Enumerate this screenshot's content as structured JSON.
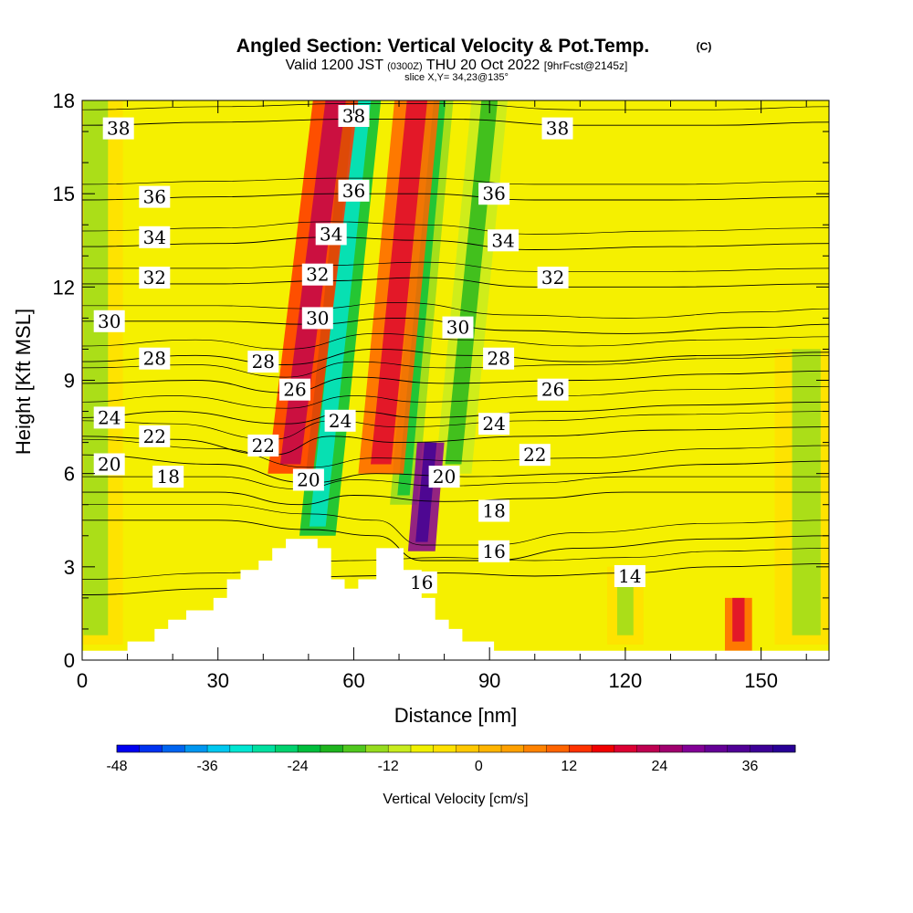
{
  "header": {
    "title": "Angled Section: Vertical Velocity & Pot.Temp.",
    "title_mark": "(C)",
    "valid_prefix": "Valid 1200 JST",
    "valid_utc": "(0300Z)",
    "valid_date": "THU 20 Oct 2022",
    "forecast": "[9hrFcst@2145z]",
    "slice": "slice X,Y= 34,23@135°"
  },
  "chart_data": {
    "type": "heatmap",
    "xlabel": "Distance [nm]",
    "ylabel": "Height [Kft MSL]",
    "xlim": [
      0,
      165
    ],
    "ylim": [
      0,
      18
    ],
    "x_ticks": [
      0,
      30,
      60,
      90,
      120,
      150
    ],
    "y_ticks": [
      0,
      3,
      6,
      9,
      12,
      15,
      18
    ],
    "x_minor_step": 10,
    "y_minor_step": 1,
    "terrain_profile": [
      [
        0,
        0.3
      ],
      [
        10,
        0.3
      ],
      [
        10,
        0.6
      ],
      [
        16,
        0.6
      ],
      [
        16,
        1.0
      ],
      [
        19,
        1.0
      ],
      [
        19,
        1.3
      ],
      [
        23,
        1.3
      ],
      [
        23,
        1.6
      ],
      [
        29,
        1.6
      ],
      [
        29,
        2.0
      ],
      [
        32,
        2.0
      ],
      [
        32,
        2.6
      ],
      [
        35,
        2.6
      ],
      [
        35,
        2.9
      ],
      [
        39,
        2.9
      ],
      [
        39,
        3.2
      ],
      [
        42,
        3.2
      ],
      [
        42,
        3.6
      ],
      [
        45,
        3.6
      ],
      [
        45,
        3.9
      ],
      [
        52,
        3.9
      ],
      [
        52,
        3.6
      ],
      [
        55,
        3.6
      ],
      [
        55,
        2.6
      ],
      [
        58,
        2.6
      ],
      [
        58,
        2.3
      ],
      [
        61,
        2.3
      ],
      [
        61,
        2.6
      ],
      [
        65,
        2.6
      ],
      [
        65,
        3.6
      ],
      [
        71,
        3.6
      ],
      [
        71,
        2.9
      ],
      [
        75,
        2.9
      ],
      [
        75,
        2.0
      ],
      [
        78,
        2.0
      ],
      [
        78,
        1.3
      ],
      [
        81,
        1.3
      ],
      [
        81,
        1.0
      ],
      [
        84,
        1.0
      ],
      [
        84,
        0.6
      ],
      [
        91,
        0.6
      ],
      [
        91,
        0.3
      ],
      [
        165,
        0.3
      ]
    ],
    "vertical_velocity_bands": [
      {
        "x_center": 52,
        "x_spread": 4,
        "y_from": 4,
        "y_to": 18,
        "tilt": 10,
        "value": -24
      },
      {
        "x_center": 71,
        "x_spread": 3,
        "y_from": 5,
        "y_to": 18,
        "tilt": 8,
        "value": -15
      },
      {
        "x_center": 82,
        "x_spread": 4,
        "y_from": 6,
        "y_to": 18,
        "tilt": 8,
        "value": -12
      },
      {
        "x_center": 46,
        "x_spread": 5,
        "y_from": 6,
        "y_to": 18,
        "tilt": 10,
        "value": 12
      },
      {
        "x_center": 66,
        "x_spread": 5,
        "y_from": 6,
        "y_to": 18,
        "tilt": 8,
        "value": 10
      },
      {
        "x_center": 75,
        "x_spread": 3,
        "y_from": 3.5,
        "y_to": 7,
        "tilt": 2,
        "value": 27
      },
      {
        "x_center": 3,
        "x_spread": 6,
        "y_from": 0.5,
        "y_to": 18,
        "tilt": 0,
        "value": -6
      },
      {
        "x_center": 160,
        "x_spread": 7,
        "y_from": 0.5,
        "y_to": 10,
        "tilt": 0,
        "value": -6
      },
      {
        "x_center": 120,
        "x_spread": 4,
        "y_from": 0.5,
        "y_to": 3,
        "tilt": 0,
        "value": -6
      },
      {
        "x_center": 145,
        "x_spread": 3,
        "y_from": 0.3,
        "y_to": 2,
        "tilt": 0,
        "value": 9
      }
    ],
    "isentropes": [
      {
        "theta": 14,
        "x": [
          0,
          30,
          60,
          80,
          100,
          120,
          140,
          165
        ],
        "y": [
          2.1,
          2.3,
          2.7,
          2.8,
          2.7,
          2.8,
          3.0,
          3.1
        ]
      },
      {
        "theta": 16,
        "x": [
          0,
          30,
          50,
          65,
          75,
          90,
          110,
          140,
          165
        ],
        "y": [
          4.5,
          4.5,
          4.2,
          4.0,
          3.2,
          3.2,
          3.6,
          3.9,
          4.0
        ]
      },
      {
        "theta": 18,
        "x": [
          0,
          30,
          48,
          60,
          80,
          100,
          120,
          165
        ],
        "y": [
          5.4,
          5.4,
          5.0,
          5.3,
          5.1,
          5.2,
          5.4,
          5.4
        ]
      },
      {
        "theta": 20,
        "x": [
          0,
          30,
          50,
          65,
          85,
          110,
          140,
          165
        ],
        "y": [
          6.6,
          6.3,
          5.7,
          6.0,
          5.9,
          6.0,
          6.3,
          6.4
        ]
      },
      {
        "theta": 22,
        "x": [
          0,
          20,
          42,
          55,
          70,
          100,
          130,
          165
        ],
        "y": [
          7.2,
          7.1,
          6.6,
          7.2,
          7.0,
          7.2,
          7.4,
          7.5
        ]
      },
      {
        "theta": 24,
        "x": [
          0,
          20,
          45,
          60,
          75,
          105,
          135,
          165
        ],
        "y": [
          7.8,
          8.0,
          7.6,
          8.0,
          7.8,
          8.0,
          8.2,
          8.3
        ]
      },
      {
        "theta": 26,
        "x": [
          0,
          25,
          45,
          60,
          80,
          110,
          140,
          165
        ],
        "y": [
          8.9,
          9.0,
          8.6,
          9.1,
          8.9,
          9.0,
          9.2,
          9.3
        ]
      },
      {
        "theta": 28,
        "x": [
          0,
          25,
          45,
          65,
          85,
          110,
          140,
          165
        ],
        "y": [
          9.6,
          9.8,
          9.5,
          10.0,
          9.8,
          9.6,
          9.8,
          9.9
        ]
      },
      {
        "theta": 30,
        "x": [
          0,
          30,
          50,
          70,
          95,
          120,
          150,
          165
        ],
        "y": [
          10.9,
          10.9,
          10.8,
          11.0,
          10.6,
          10.5,
          10.7,
          10.8
        ]
      },
      {
        "theta": 32,
        "x": [
          0,
          30,
          55,
          75,
          100,
          130,
          165
        ],
        "y": [
          12.1,
          12.1,
          12.2,
          12.3,
          12.0,
          12.0,
          12.1
        ]
      },
      {
        "theta": 34,
        "x": [
          0,
          30,
          55,
          75,
          100,
          130,
          165
        ],
        "y": [
          13.3,
          13.4,
          13.6,
          13.5,
          13.2,
          13.3,
          13.4
        ]
      },
      {
        "theta": 36,
        "x": [
          0,
          30,
          55,
          75,
          100,
          130,
          165
        ],
        "y": [
          14.8,
          14.9,
          15.0,
          15.0,
          14.8,
          14.8,
          14.9
        ]
      },
      {
        "theta": 38,
        "x": [
          0,
          30,
          60,
          80,
          110,
          140,
          165
        ],
        "y": [
          17.2,
          17.3,
          17.4,
          17.4,
          17.2,
          17.2,
          17.3
        ]
      }
    ],
    "contour_labels": [
      {
        "text": "38",
        "x": 8,
        "y": 17.1
      },
      {
        "text": "38",
        "x": 60,
        "y": 17.5
      },
      {
        "text": "38",
        "x": 105,
        "y": 17.1
      },
      {
        "text": "36",
        "x": 16,
        "y": 14.9
      },
      {
        "text": "36",
        "x": 60,
        "y": 15.1
      },
      {
        "text": "36",
        "x": 91,
        "y": 15.0
      },
      {
        "text": "34",
        "x": 16,
        "y": 13.6
      },
      {
        "text": "34",
        "x": 55,
        "y": 13.7
      },
      {
        "text": "34",
        "x": 93,
        "y": 13.5
      },
      {
        "text": "32",
        "x": 16,
        "y": 12.3
      },
      {
        "text": "32",
        "x": 52,
        "y": 12.4
      },
      {
        "text": "32",
        "x": 104,
        "y": 12.3
      },
      {
        "text": "30",
        "x": 6,
        "y": 10.9
      },
      {
        "text": "30",
        "x": 52,
        "y": 11.0
      },
      {
        "text": "30",
        "x": 83,
        "y": 10.7
      },
      {
        "text": "28",
        "x": 16,
        "y": 9.7
      },
      {
        "text": "28",
        "x": 40,
        "y": 9.6
      },
      {
        "text": "28",
        "x": 92,
        "y": 9.7
      },
      {
        "text": "26",
        "x": 47,
        "y": 8.7
      },
      {
        "text": "26",
        "x": 104,
        "y": 8.7
      },
      {
        "text": "24",
        "x": 6,
        "y": 7.8
      },
      {
        "text": "24",
        "x": 57,
        "y": 7.7
      },
      {
        "text": "24",
        "x": 91,
        "y": 7.6
      },
      {
        "text": "22",
        "x": 16,
        "y": 7.2
      },
      {
        "text": "22",
        "x": 40,
        "y": 6.9
      },
      {
        "text": "22",
        "x": 100,
        "y": 6.6
      },
      {
        "text": "20",
        "x": 6,
        "y": 6.3
      },
      {
        "text": "20",
        "x": 50,
        "y": 5.8
      },
      {
        "text": "20",
        "x": 80,
        "y": 5.9
      },
      {
        "text": "18",
        "x": 19,
        "y": 5.9
      },
      {
        "text": "18",
        "x": 91,
        "y": 4.8
      },
      {
        "text": "16",
        "x": 91,
        "y": 3.5
      },
      {
        "text": "16",
        "x": 75,
        "y": 2.5
      },
      {
        "text": "14",
        "x": 121,
        "y": 2.7
      }
    ]
  },
  "colorbar": {
    "label": "Vertical Velocity [cm/s]",
    "min": -48,
    "max": 42,
    "step": 3,
    "tick_values": [
      -48,
      -36,
      -24,
      -12,
      0,
      12,
      24,
      36
    ],
    "tick_labels": [
      "-48",
      "-36",
      "-24",
      "-12",
      "0",
      "12",
      "24",
      "36"
    ],
    "colors": [
      "#0000f0",
      "#0032f0",
      "#0064f0",
      "#0096f0",
      "#00c8f0",
      "#00e6d2",
      "#00e0a0",
      "#00d26e",
      "#00be3c",
      "#1eb41e",
      "#50c81e",
      "#96dc1e",
      "#c8ec1e",
      "#f0f000",
      "#ffe100",
      "#ffc800",
      "#ffb400",
      "#ffa000",
      "#ff8200",
      "#ff6400",
      "#ff3200",
      "#f00000",
      "#dc0032",
      "#be0050",
      "#a0006e",
      "#820096",
      "#640096",
      "#500096",
      "#3c0096",
      "#280096"
    ]
  }
}
